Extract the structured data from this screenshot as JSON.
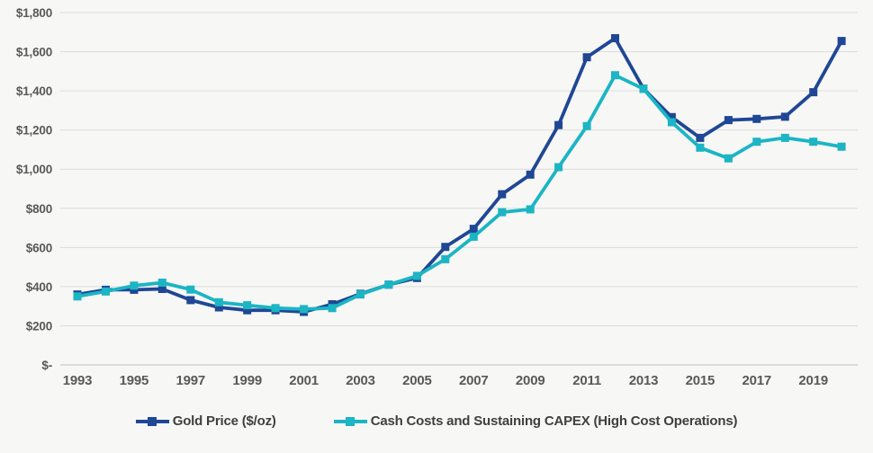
{
  "colors": {
    "background": "#f7f7f5",
    "gridline": "#dcdcdc",
    "axis_line": "#bfbfbf",
    "tick_text": "#595959",
    "legend_text": "#404040",
    "gold_series": "#1f4795",
    "cash_series": "#1bb5c4"
  },
  "chart_data": {
    "type": "line",
    "title": "",
    "xlabel": "",
    "ylabel": "",
    "grid": true,
    "legend_position": "bottom",
    "marker": "square",
    "x": [
      1993,
      1994,
      1995,
      1996,
      1997,
      1998,
      1999,
      2000,
      2001,
      2002,
      2003,
      2004,
      2005,
      2006,
      2007,
      2008,
      2009,
      2010,
      2011,
      2012,
      2013,
      2014,
      2015,
      2016,
      2017,
      2018,
      2019,
      2020
    ],
    "series": [
      {
        "name": "Gold Price ($/oz)",
        "color": "#1f4795",
        "values": [
          360,
          384,
          384,
          388,
          331,
          294,
          279,
          279,
          271,
          310,
          363,
          410,
          444,
          603,
          695,
          872,
          972,
          1225,
          1572,
          1669,
          1411,
          1266,
          1160,
          1251,
          1257,
          1268,
          1393,
          1655
        ]
      },
      {
        "name": "Cash Costs and Sustaining CAPEX (High Cost Operations)",
        "color": "#1bb5c4",
        "values": [
          350,
          375,
          405,
          420,
          385,
          320,
          305,
          290,
          285,
          290,
          360,
          410,
          455,
          540,
          655,
          780,
          795,
          1010,
          1220,
          1480,
          1410,
          1240,
          1110,
          1055,
          1140,
          1160,
          1140,
          1115
        ]
      }
    ],
    "y_axis": {
      "min": 0,
      "max": 1800,
      "tick_step": 200,
      "tick_labels": [
        "$-",
        "$200",
        "$400",
        "$600",
        "$800",
        "$1,000",
        "$1,200",
        "$1,400",
        "$1,600",
        "$1,800"
      ]
    },
    "x_axis": {
      "tick_years": [
        1993,
        1995,
        1997,
        1999,
        2001,
        2003,
        2005,
        2007,
        2009,
        2011,
        2013,
        2015,
        2017,
        2019
      ]
    }
  }
}
